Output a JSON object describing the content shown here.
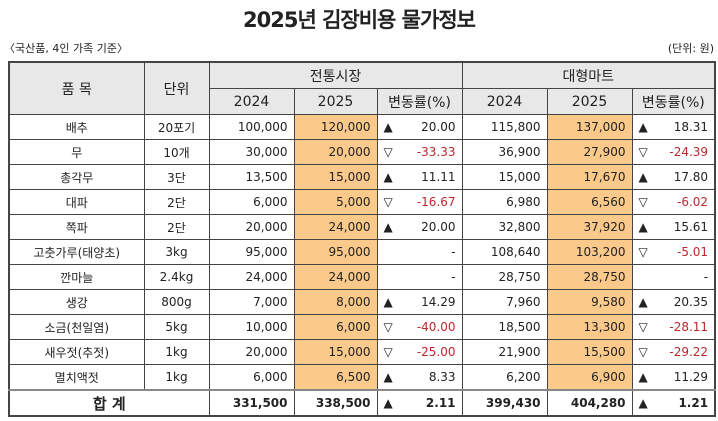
{
  "title": "2025년 김장비용 물가정보",
  "subtitle": "〈국산품, 4인 가족 기준〉",
  "unit": "(단위: 원)",
  "headers": {
    "item": "품 목",
    "unit": "단위",
    "market": "전통시장",
    "mart": "대형마트",
    "y2024": "2024",
    "y2025": "2025",
    "change": "변동률(%)"
  },
  "colors": {
    "highlight": "#fbc98a",
    "header": "#e8e8e8",
    "negative": "#c0272d"
  },
  "rows": [
    {
      "item": "배추",
      "unit": "20포기",
      "m24": "100,000",
      "m25": "120,000",
      "ms": "▲",
      "mc": "20.00",
      "d24": "115,800",
      "d25": "137,000",
      "ds": "▲",
      "dc": "18.31"
    },
    {
      "item": "무",
      "unit": "10개",
      "m24": "30,000",
      "m25": "20,000",
      "ms": "▽",
      "mc": "-33.33",
      "d24": "36,900",
      "d25": "27,900",
      "ds": "▽",
      "dc": "-24.39"
    },
    {
      "item": "총각무",
      "unit": "3단",
      "m24": "13,500",
      "m25": "15,000",
      "ms": "▲",
      "mc": "11.11",
      "d24": "15,000",
      "d25": "17,670",
      "ds": "▲",
      "dc": "17.80"
    },
    {
      "item": "대파",
      "unit": "2단",
      "m24": "6,000",
      "m25": "5,000",
      "ms": "▽",
      "mc": "-16.67",
      "d24": "6,980",
      "d25": "6,560",
      "ds": "▽",
      "dc": "-6.02"
    },
    {
      "item": "쪽파",
      "unit": "2단",
      "m24": "20,000",
      "m25": "24,000",
      "ms": "▲",
      "mc": "20.00",
      "d24": "32,800",
      "d25": "37,920",
      "ds": "▲",
      "dc": "15.61"
    },
    {
      "item": "고춧가루(태양초)",
      "unit": "3kg",
      "m24": "95,000",
      "m25": "95,000",
      "ms": "",
      "mc": "-",
      "d24": "108,640",
      "d25": "103,200",
      "ds": "▽",
      "dc": "-5.01"
    },
    {
      "item": "깐마늘",
      "unit": "2.4kg",
      "m24": "24,000",
      "m25": "24,000",
      "ms": "",
      "mc": "-",
      "d24": "28,750",
      "d25": "28,750",
      "ds": "",
      "dc": "-"
    },
    {
      "item": "생강",
      "unit": "800g",
      "m24": "7,000",
      "m25": "8,000",
      "ms": "▲",
      "mc": "14.29",
      "d24": "7,960",
      "d25": "9,580",
      "ds": "▲",
      "dc": "20.35"
    },
    {
      "item": "소금(천일염)",
      "unit": "5kg",
      "m24": "10,000",
      "m25": "6,000",
      "ms": "▽",
      "mc": "-40.00",
      "d24": "18,500",
      "d25": "13,300",
      "ds": "▽",
      "dc": "-28.11"
    },
    {
      "item": "새우젓(추젓)",
      "unit": "1kg",
      "m24": "20,000",
      "m25": "15,000",
      "ms": "▽",
      "mc": "-25.00",
      "d24": "21,900",
      "d25": "15,500",
      "ds": "▽",
      "dc": "-29.22"
    },
    {
      "item": "멸치액젓",
      "unit": "1kg",
      "m24": "6,000",
      "m25": "6,500",
      "ms": "▲",
      "mc": "8.33",
      "d24": "6,200",
      "d25": "6,900",
      "ds": "▲",
      "dc": "11.29"
    }
  ],
  "total": {
    "label": "합 계",
    "m24": "331,500",
    "m25": "338,500",
    "ms": "▲",
    "mc": "2.11",
    "d24": "399,430",
    "d25": "404,280",
    "ds": "▲",
    "dc": "1.21"
  }
}
